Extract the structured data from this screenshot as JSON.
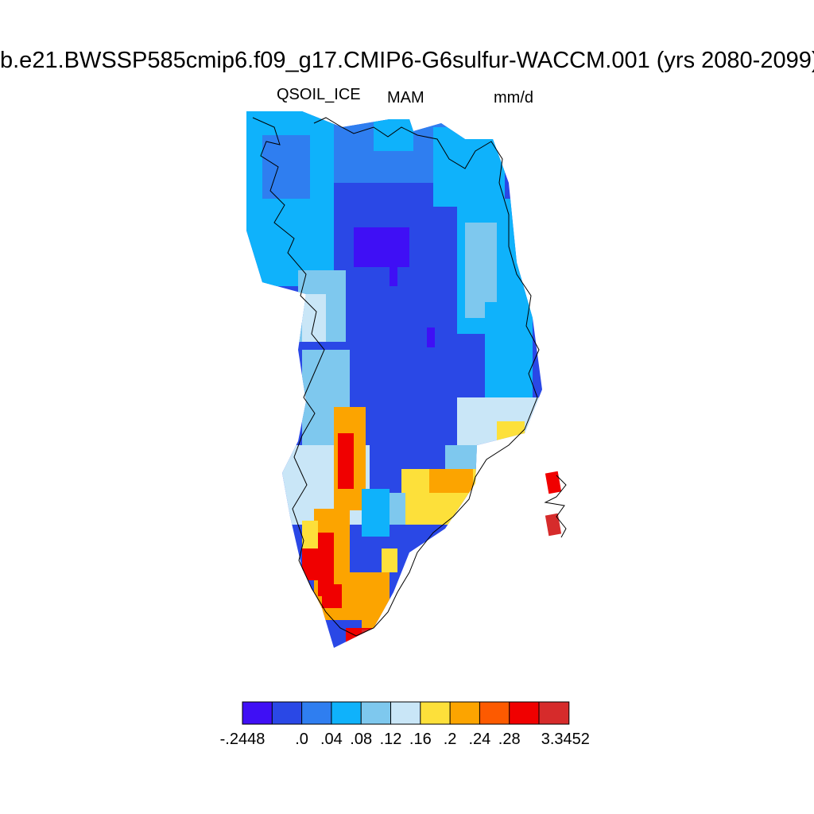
{
  "title": "b.e21.BWSSP585cmip6.f09_g17.CMIP6-G6sulfur-WACCM.001 (yrs 2080-2099)",
  "variable": "QSOIL_ICE",
  "season": "MAM",
  "units": "mm/d",
  "colorbar": {
    "colors": [
      "#3f0ff5",
      "#2a48e6",
      "#2f7ef0",
      "#0fb2fb",
      "#7ec8ee",
      "#c9e6f7",
      "#fde03a",
      "#fca400",
      "#fd5a00",
      "#f00000",
      "#d62b2b"
    ],
    "labels": [
      {
        "text": "-.2448",
        "boundary": 0
      },
      {
        "text": ".0",
        "boundary": 2
      },
      {
        "text": ".04",
        "boundary": 3
      },
      {
        "text": ".08",
        "boundary": 4
      },
      {
        "text": ".12",
        "boundary": 5
      },
      {
        "text": ".16",
        "boundary": 6
      },
      {
        "text": ".2",
        "boundary": 7
      },
      {
        "text": ".24",
        "boundary": 8
      },
      {
        "text": ".28",
        "boundary": 9
      },
      {
        "text": "3.3452",
        "boundary": 11
      }
    ]
  },
  "regions": [
    {
      "name": "northwest-fringe",
      "category": 2
    },
    {
      "name": "northwest-coast",
      "category": 3
    },
    {
      "name": "northern-interior",
      "category": 2
    },
    {
      "name": "north-coast-cyan",
      "category": 3
    },
    {
      "name": "central-ice-sheet",
      "category": 1
    },
    {
      "name": "central-minimum",
      "category": 0
    },
    {
      "name": "east-coast",
      "category": 3
    },
    {
      "name": "east-coast-light",
      "category": 4
    },
    {
      "name": "west-coast-light",
      "category": 5
    },
    {
      "name": "southeast-coast",
      "category": 5
    },
    {
      "name": "southwest-warm-band",
      "category": 7
    },
    {
      "name": "southwest-hot-band",
      "category": 9
    },
    {
      "name": "southeast-warm",
      "category": 6
    },
    {
      "name": "southern-tip",
      "category": 9
    },
    {
      "name": "svalbard-cells",
      "category": 10
    }
  ]
}
